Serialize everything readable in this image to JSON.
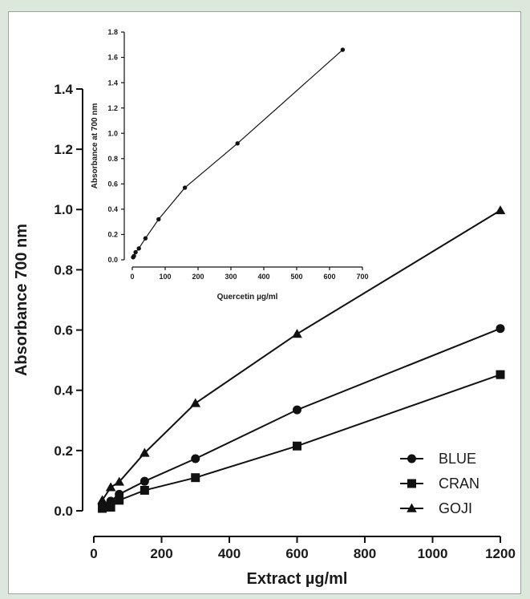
{
  "chart_data": [
    {
      "type": "line",
      "role": "main",
      "xlabel": "Extract µg/ml",
      "ylabel": "Absorbance 700 nm",
      "xlim": [
        0,
        1200
      ],
      "ylim": [
        0,
        1.4
      ],
      "x_ticks": [
        0,
        200,
        400,
        600,
        800,
        1000,
        1200
      ],
      "x_tick_labels": [
        "0",
        "200",
        "400",
        "600",
        "800",
        "1000",
        "1200"
      ],
      "y_ticks": [
        0,
        0.2,
        0.4,
        0.6,
        0.8,
        1.0,
        1.2,
        1.4
      ],
      "y_tick_labels": [
        "0.0",
        "0.2",
        "0.4",
        "0.6",
        "0.8",
        "1.0",
        "1.2",
        "1.4"
      ],
      "grid": false,
      "legend": "bottom-right",
      "series": [
        {
          "name": "BLUE",
          "marker": "circle",
          "x": [
            25,
            50,
            75,
            150,
            300,
            600,
            1200
          ],
          "y": [
            0.022,
            0.032,
            0.055,
            0.098,
            0.173,
            0.335,
            0.605
          ]
        },
        {
          "name": "CRAN",
          "marker": "square",
          "x": [
            25,
            50,
            75,
            150,
            300,
            600,
            1200
          ],
          "y": [
            0.008,
            0.012,
            0.035,
            0.068,
            0.11,
            0.215,
            0.452
          ]
        },
        {
          "name": "GOJI",
          "marker": "triangle",
          "x": [
            25,
            50,
            75,
            150,
            300,
            600,
            1200
          ],
          "y": [
            0.035,
            0.078,
            0.096,
            0.192,
            0.357,
            0.587,
            0.997
          ]
        }
      ]
    },
    {
      "type": "line",
      "role": "inset",
      "xlabel": "Quercetin µg/ml",
      "ylabel": "Absorbance at 700 nm",
      "xlim": [
        0,
        700
      ],
      "ylim": [
        0,
        1.8
      ],
      "x_ticks": [
        0,
        100,
        200,
        300,
        400,
        500,
        600,
        700
      ],
      "x_tick_labels": [
        "0",
        "100",
        "200",
        "300",
        "400",
        "500",
        "600",
        "700"
      ],
      "y_ticks": [
        0,
        0.2,
        0.4,
        0.6,
        0.8,
        1.0,
        1.2,
        1.4,
        1.6,
        1.8
      ],
      "y_tick_labels": [
        "0.0",
        "0.2",
        "0.4",
        "0.6",
        "0.8",
        "1.0",
        "1.2",
        "1.4",
        "1.6",
        "1.8"
      ],
      "grid": false,
      "series": [
        {
          "marker": "circle",
          "x": [
            2.5,
            5,
            10,
            20,
            40,
            80,
            160,
            320,
            640
          ],
          "y": [
            0.02,
            0.03,
            0.06,
            0.09,
            0.17,
            0.32,
            0.57,
            0.92,
            1.66
          ]
        }
      ]
    }
  ]
}
